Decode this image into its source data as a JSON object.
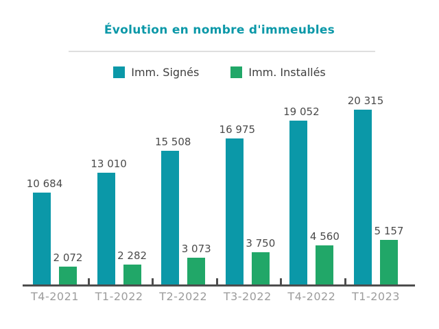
{
  "header": {
    "title": "Évolution en nombre d'immeubles"
  },
  "legend": {
    "items": [
      {
        "label": "Imm. Signés",
        "color": "#0b98a8"
      },
      {
        "label": "Imm. Installés",
        "color": "#21a768"
      }
    ]
  },
  "chart_data": {
    "type": "bar",
    "title": "Évolution en nombre d'immeubles",
    "xlabel": "",
    "ylabel": "",
    "categories": [
      "T4-2021",
      "T1-2022",
      "T2-2022",
      "T3-2022",
      "T4-2022",
      "T1-2023"
    ],
    "series": [
      {
        "name": "Imm. Signés",
        "color": "#0b98a8",
        "values": [
          10684,
          13010,
          15508,
          16975,
          19052,
          20315
        ],
        "labels": [
          "10 684",
          "13 010",
          "15 508",
          "16 975",
          "19 052",
          "20 315"
        ]
      },
      {
        "name": "Imm. Installés",
        "color": "#21a768",
        "values": [
          2072,
          2282,
          3073,
          3750,
          4560,
          5157
        ],
        "labels": [
          "2 072",
          "2 282",
          "3 073",
          "3 750",
          "4 560",
          "5 157"
        ]
      }
    ],
    "ylim": [
      0,
      20315
    ],
    "grid": false,
    "legend_position": "top",
    "value_labels_shown": true,
    "thousands_separator": " "
  },
  "colors": {
    "title": "#0b98a8",
    "series_signes": "#0b98a8",
    "series_installes": "#21a768",
    "value_label": "#4a4a4a",
    "axis_label": "#9c9c9c",
    "axis_line": "#4d4d4d",
    "divider": "#dedede",
    "background": "#ffffff"
  }
}
